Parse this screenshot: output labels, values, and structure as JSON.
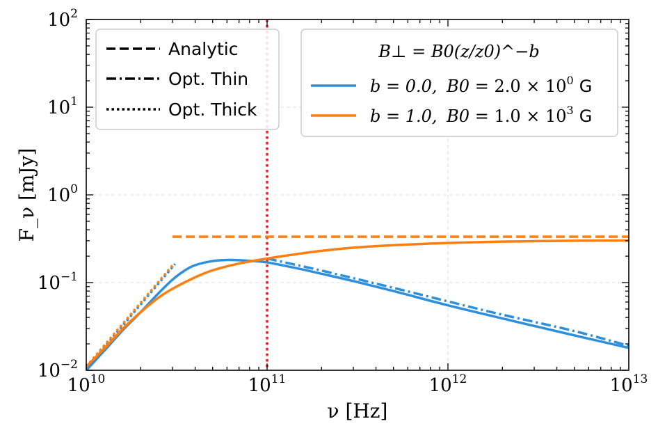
{
  "chart_data": {
    "type": "line",
    "xscale": "log",
    "yscale": "log",
    "xlim": [
      10000000000.0,
      10000000000000.0
    ],
    "ylim": [
      0.01,
      100
    ],
    "xlabel": "ν [Hz]",
    "ylabel": "F_ν [mJy]",
    "x_ticks": [
      {
        "base": "10",
        "exp": "10",
        "value": 10000000000.0
      },
      {
        "base": "10",
        "exp": "11",
        "value": 100000000000.0
      },
      {
        "base": "10",
        "exp": "12",
        "value": 1000000000000.0
      },
      {
        "base": "10",
        "exp": "13",
        "value": 10000000000000.0
      }
    ],
    "y_ticks": [
      {
        "base": "10",
        "exp": "−2",
        "value": 0.01
      },
      {
        "base": "10",
        "exp": "−1",
        "value": 0.1
      },
      {
        "base": "10",
        "exp": "0",
        "value": 1
      },
      {
        "base": "10",
        "exp": "1",
        "value": 10
      },
      {
        "base": "10",
        "exp": "2",
        "value": 100
      }
    ],
    "grid": true,
    "vline": {
      "x": 100000000000.0,
      "color": "#ff1f1f",
      "style": "dotted"
    },
    "style_legend": {
      "placement": "top-left",
      "entries": [
        {
          "label": "Analytic",
          "style": "dashed"
        },
        {
          "label": "Opt. Thin",
          "style": "dashdot"
        },
        {
          "label": "Opt. Thick",
          "style": "dotted"
        }
      ]
    },
    "series_legend": {
      "placement": "top-right",
      "title": "B⊥ = B0(z/z0)^−b",
      "entries": [
        {
          "b": "b = 0.0,",
          "b0_label": "B0 =",
          "b0_value": "2.0 × 10",
          "b0_exp": "0",
          "unit": "G",
          "color": "#2e8fdc"
        },
        {
          "b": "b = 1.0,",
          "b0_label": "B0 =",
          "b0_value": "1.0 × 10",
          "b0_exp": "3",
          "unit": "G",
          "color": "#ff7f0e"
        }
      ]
    },
    "series": [
      {
        "name": "b = 0.0 total",
        "color": "#2e8fdc",
        "style": "solid",
        "x": [
          10000000000.0,
          13000000000.0,
          16000000000.0,
          20000000000.0,
          25000000000.0,
          30000000000.0,
          35000000000.0,
          40000000000.0,
          50000000000.0,
          60000000000.0,
          70000000000.0,
          80000000000.0,
          100000000000.0,
          150000000000.0,
          200000000000.0,
          300000000000.0,
          500000000000.0,
          1000000000000.0,
          2000000000000.0,
          5000000000000.0,
          10000000000000.0
        ],
        "y": [
          0.01,
          0.018,
          0.029,
          0.046,
          0.075,
          0.108,
          0.137,
          0.158,
          0.176,
          0.181,
          0.18,
          0.177,
          0.17,
          0.144,
          0.126,
          0.104,
          0.08,
          0.055,
          0.039,
          0.025,
          0.018
        ]
      },
      {
        "name": "b = 0.0 optically thin",
        "color": "#2e8fdc",
        "style": "dashdot",
        "x": [
          100000000000.0,
          200000000000.0,
          500000000000.0,
          1000000000000.0,
          2000000000000.0,
          5000000000000.0,
          10000000000000.0
        ],
        "y": [
          0.188,
          0.137,
          0.087,
          0.061,
          0.043,
          0.028,
          0.019
        ]
      },
      {
        "name": "b = 0.0 optically thick",
        "color": "#2e8fdc",
        "style": "dotted",
        "x": [
          10000000000.0,
          31000000000.0
        ],
        "y": [
          0.0105,
          0.163
        ]
      },
      {
        "name": "b = 1.0 total",
        "color": "#ff7f0e",
        "style": "solid",
        "x": [
          10000000000.0,
          13000000000.0,
          16000000000.0,
          20000000000.0,
          25000000000.0,
          30000000000.0,
          40000000000.0,
          50000000000.0,
          70000000000.0,
          100000000000.0,
          150000000000.0,
          200000000000.0,
          300000000000.0,
          500000000000.0,
          1000000000000.0,
          2000000000000.0,
          5000000000000.0,
          10000000000000.0
        ],
        "y": [
          0.011,
          0.019,
          0.03,
          0.046,
          0.067,
          0.085,
          0.115,
          0.138,
          0.165,
          0.188,
          0.213,
          0.23,
          0.25,
          0.267,
          0.283,
          0.293,
          0.3,
          0.302
        ]
      },
      {
        "name": "b = 1.0 analytic",
        "color": "#ff7f0e",
        "style": "dashed",
        "x": [
          30000000000.0,
          10000000000000.0
        ],
        "y": [
          0.333,
          0.333
        ]
      },
      {
        "name": "b = 1.0 optically thick",
        "color": "#ff7f0e",
        "style": "dotted",
        "x": [
          10000000000.0,
          30000000000.0
        ],
        "y": [
          0.011,
          0.157
        ]
      }
    ]
  }
}
